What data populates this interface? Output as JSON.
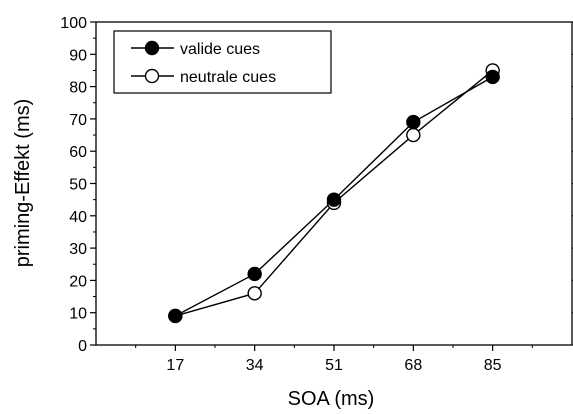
{
  "chart_data": {
    "type": "line",
    "xlabel": "SOA (ms)",
    "ylabel": "priming-Effekt (ms)",
    "categories": [
      "17",
      "34",
      "51",
      "68",
      "85"
    ],
    "x": [
      17,
      34,
      51,
      68,
      85
    ],
    "xlim": [
      0,
      102
    ],
    "ylim": [
      0,
      100
    ],
    "yticks": [
      0,
      10,
      20,
      30,
      40,
      50,
      60,
      70,
      80,
      90,
      100
    ],
    "grid": false,
    "legend_position": "top-left",
    "series": [
      {
        "name": "valide cues",
        "marker": "filled-circle",
        "color": "#000000",
        "values": [
          9,
          22,
          45,
          69,
          83
        ]
      },
      {
        "name": "neutrale cues",
        "marker": "open-circle",
        "color": "#000000",
        "values": [
          9,
          16,
          44,
          65,
          85
        ]
      }
    ]
  }
}
